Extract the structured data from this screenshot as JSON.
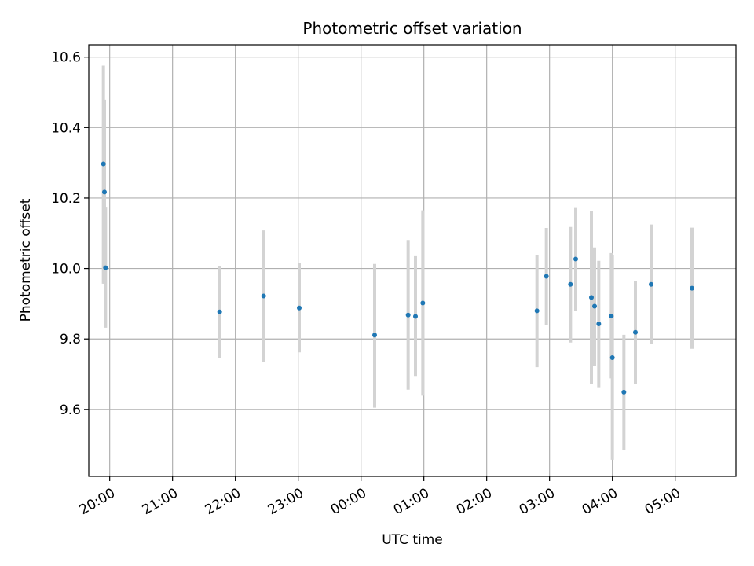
{
  "chart_data": {
    "type": "scatter",
    "title": "Photometric offset variation",
    "xlabel": "UTC time",
    "ylabel": "Photometric offset",
    "xlim": [
      "19:40",
      "05:58"
    ],
    "ylim": [
      9.41,
      10.635
    ],
    "grid": true,
    "x_ticks": [
      "20:00",
      "21:00",
      "22:00",
      "23:00",
      "00:00",
      "01:00",
      "02:00",
      "03:00",
      "04:00",
      "05:00"
    ],
    "y_ticks": [
      "9.6",
      "9.8",
      "10.0",
      "10.2",
      "10.4",
      "10.6"
    ],
    "y_tick_values": [
      9.6,
      9.8,
      10.0,
      10.2,
      10.4,
      10.6
    ],
    "colors": {
      "point": "#1f77b4",
      "error_bar": "#d3d3d3",
      "grid": "#b0b0b0"
    },
    "points": [
      {
        "x": "19:54",
        "y": 10.297,
        "yerr_low": 9.957,
        "yerr_high": 10.576
      },
      {
        "x": "19:55",
        "y": 10.217,
        "yerr_low": 9.957,
        "yerr_high": 10.479
      },
      {
        "x": "19:56",
        "y": 10.002,
        "yerr_low": 9.832,
        "yerr_high": 10.175
      },
      {
        "x": "21:45",
        "y": 9.877,
        "yerr_low": 9.745,
        "yerr_high": 10.006
      },
      {
        "x": "22:27",
        "y": 9.922,
        "yerr_low": 9.735,
        "yerr_high": 10.108
      },
      {
        "x": "23:01",
        "y": 9.888,
        "yerr_low": 9.762,
        "yerr_high": 10.015
      },
      {
        "x": "00:13",
        "y": 9.811,
        "yerr_low": 9.605,
        "yerr_high": 10.013
      },
      {
        "x": "00:45",
        "y": 9.868,
        "yerr_low": 9.656,
        "yerr_high": 10.081
      },
      {
        "x": "00:52",
        "y": 9.864,
        "yerr_low": 9.695,
        "yerr_high": 10.035
      },
      {
        "x": "00:59",
        "y": 9.902,
        "yerr_low": 9.639,
        "yerr_high": 10.165
      },
      {
        "x": "02:48",
        "y": 9.88,
        "yerr_low": 9.72,
        "yerr_high": 10.039
      },
      {
        "x": "02:57",
        "y": 9.978,
        "yerr_low": 9.84,
        "yerr_high": 10.115
      },
      {
        "x": "03:20",
        "y": 9.955,
        "yerr_low": 9.79,
        "yerr_high": 10.118
      },
      {
        "x": "03:25",
        "y": 10.027,
        "yerr_low": 9.88,
        "yerr_high": 10.174
      },
      {
        "x": "03:40",
        "y": 9.918,
        "yerr_low": 9.672,
        "yerr_high": 10.164
      },
      {
        "x": "03:43",
        "y": 9.893,
        "yerr_low": 9.724,
        "yerr_high": 10.06
      },
      {
        "x": "03:47",
        "y": 9.843,
        "yerr_low": 9.663,
        "yerr_high": 10.022
      },
      {
        "x": "03:59",
        "y": 9.865,
        "yerr_low": 9.688,
        "yerr_high": 10.044
      },
      {
        "x": "04:00",
        "y": 9.747,
        "yerr_low": 9.457,
        "yerr_high": 10.038
      },
      {
        "x": "04:11",
        "y": 9.649,
        "yerr_low": 9.486,
        "yerr_high": 9.812
      },
      {
        "x": "04:22",
        "y": 9.819,
        "yerr_low": 9.673,
        "yerr_high": 9.964
      },
      {
        "x": "04:37",
        "y": 9.955,
        "yerr_low": 9.786,
        "yerr_high": 10.125
      },
      {
        "x": "05:16",
        "y": 9.944,
        "yerr_low": 9.772,
        "yerr_high": 10.116
      }
    ]
  }
}
